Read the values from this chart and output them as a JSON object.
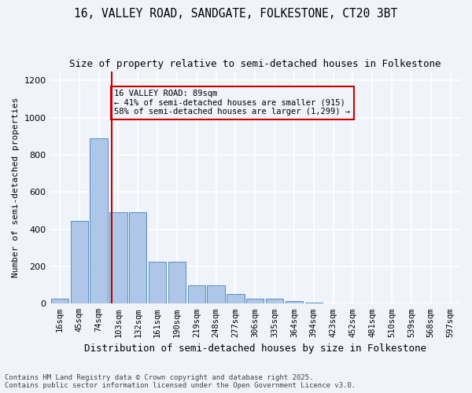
{
  "title_line1": "16, VALLEY ROAD, SANDGATE, FOLKESTONE, CT20 3BT",
  "title_line2": "Size of property relative to semi-detached houses in Folkestone",
  "xlabel": "Distribution of semi-detached houses by size in Folkestone",
  "ylabel": "Number of semi-detached properties",
  "categories": [
    "16sqm",
    "45sqm",
    "74sqm",
    "103sqm",
    "132sqm",
    "161sqm",
    "190sqm",
    "219sqm",
    "248sqm",
    "277sqm",
    "306sqm",
    "335sqm",
    "364sqm",
    "394sqm",
    "423sqm",
    "452sqm",
    "481sqm",
    "510sqm",
    "539sqm",
    "568sqm",
    "597sqm"
  ],
  "values": [
    25,
    445,
    890,
    490,
    490,
    225,
    225,
    100,
    100,
    50,
    25,
    25,
    15,
    5,
    0,
    0,
    0,
    0,
    0,
    0,
    0
  ],
  "bar_color": "#aec6e8",
  "bar_edge_color": "#5a8fc2",
  "vline_x_index": 2.65,
  "vline_color": "#cc0000",
  "annotation_text": "16 VALLEY ROAD: 89sqm\n← 41% of semi-detached houses are smaller (915)\n58% of semi-detached houses are larger (1,299) →",
  "annotation_box_color": "#cc0000",
  "ylim": [
    0,
    1250
  ],
  "yticks": [
    0,
    200,
    400,
    600,
    800,
    1000,
    1200
  ],
  "footer_line1": "Contains HM Land Registry data © Crown copyright and database right 2025.",
  "footer_line2": "Contains public sector information licensed under the Open Government Licence v3.0.",
  "bg_color": "#f0f4fa",
  "grid_color": "#ffffff"
}
